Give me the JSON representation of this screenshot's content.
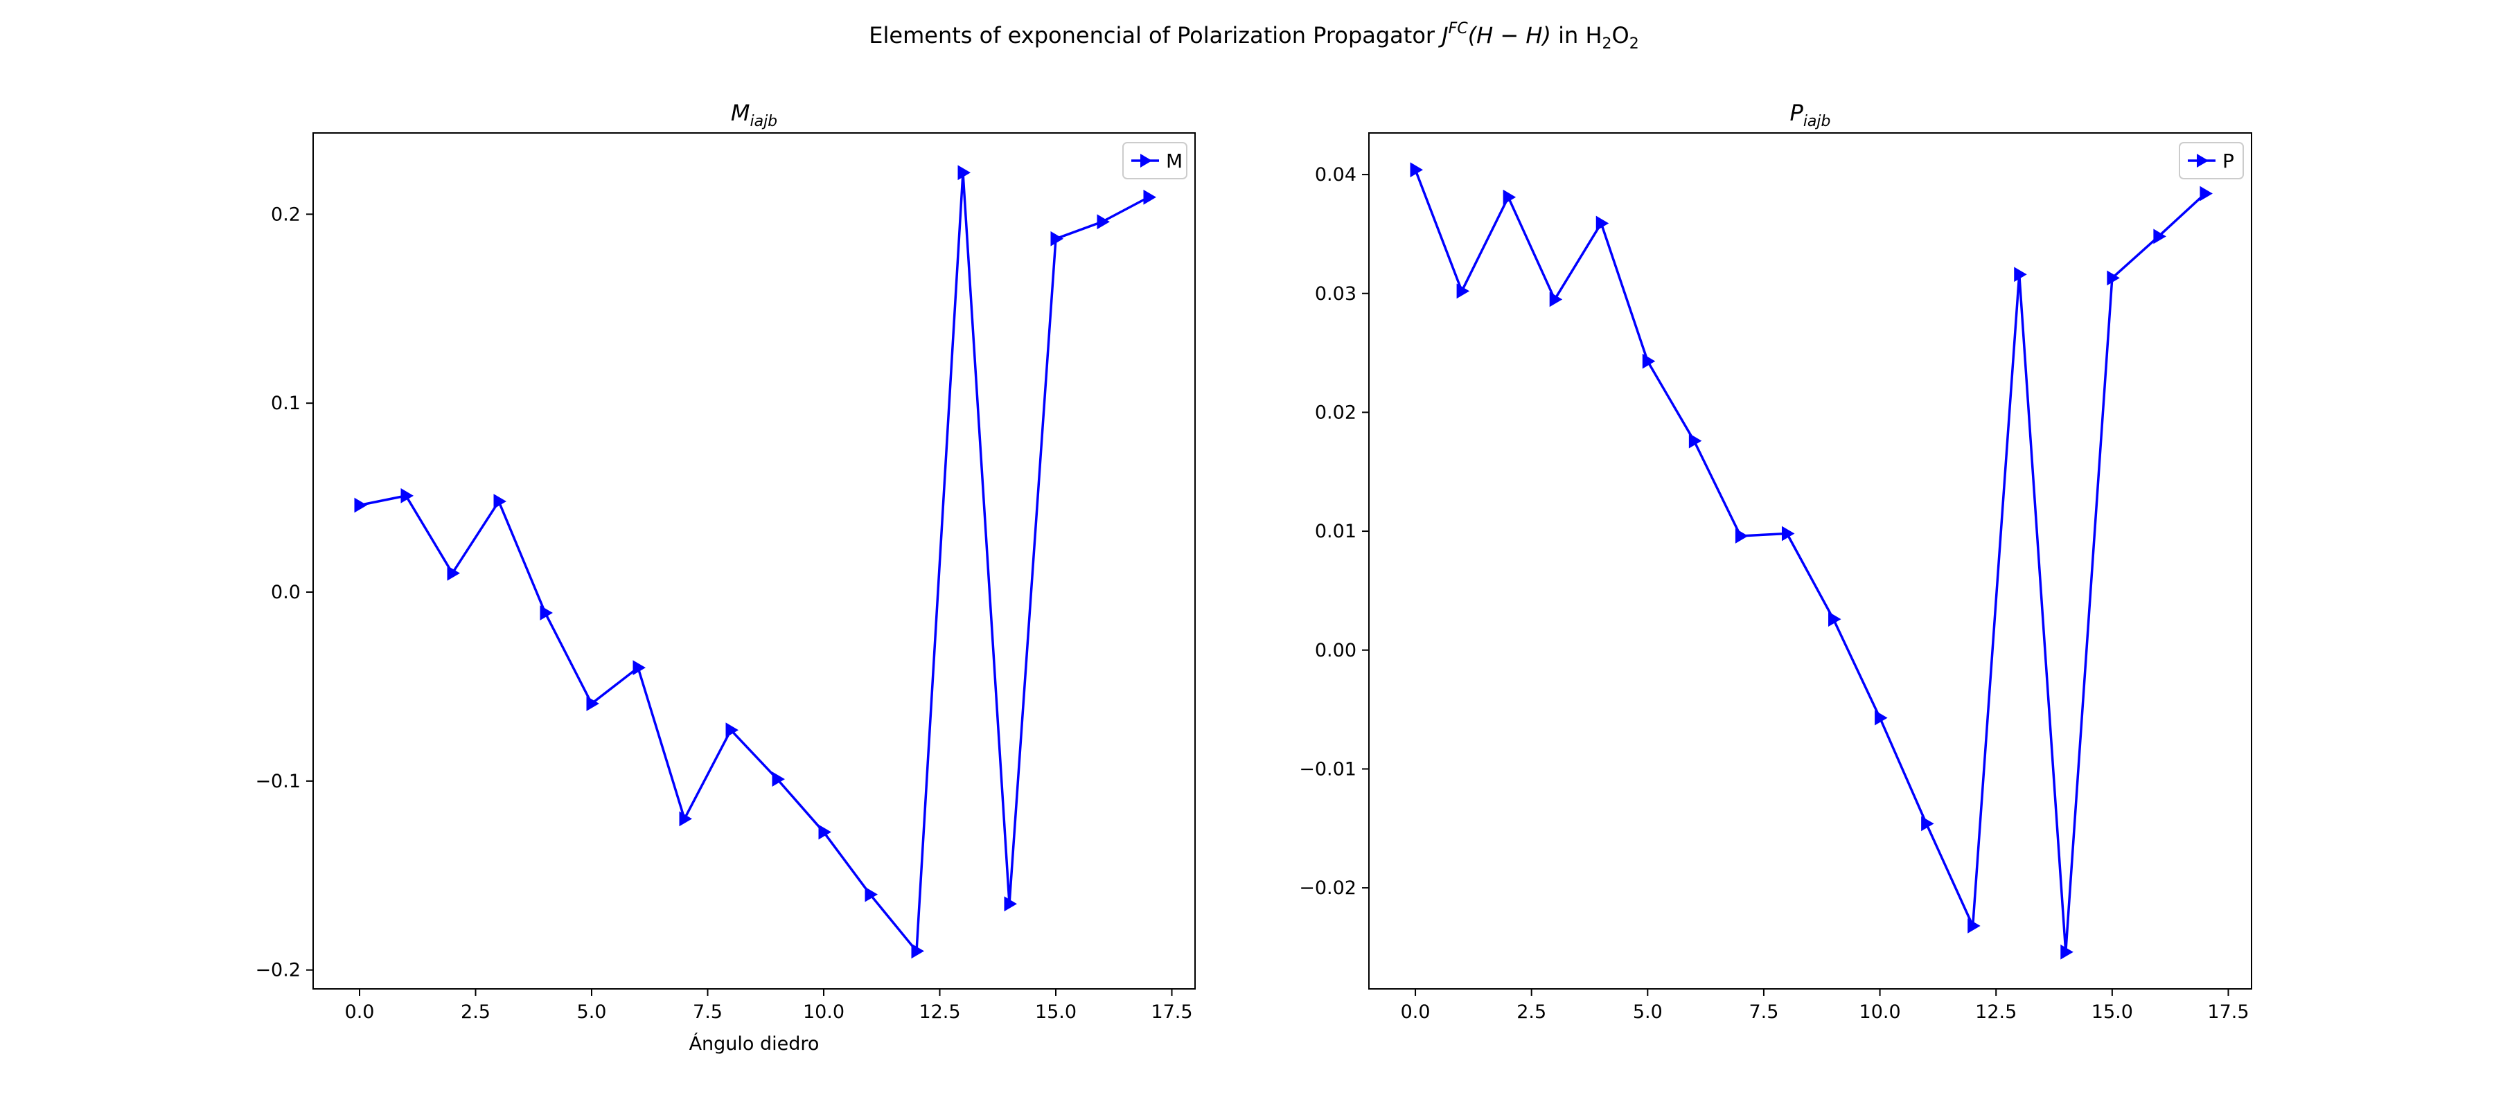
{
  "figure": {
    "title_parts": {
      "prefix": "Elements of exponencial of Polarization Propagator ",
      "j": "J",
      "j_sup": "FC",
      "paren": "(H − H)",
      "middle": " in H",
      "sub1": "2",
      "o": "O",
      "sub2": "2"
    }
  },
  "chart_data": [
    {
      "type": "line",
      "title_main": "M",
      "title_sub": "iajb",
      "xlabel": "Ángulo diedro",
      "ylabel": "",
      "xlim": [
        -1,
        18
      ],
      "ylim": [
        -0.21,
        0.243
      ],
      "xticks": [
        0.0,
        2.5,
        5.0,
        7.5,
        10.0,
        12.5,
        15.0,
        17.5
      ],
      "xtick_labels": [
        "0.0",
        "2.5",
        "5.0",
        "7.5",
        "10.0",
        "12.5",
        "15.0",
        "17.5"
      ],
      "yticks": [
        -0.2,
        -0.1,
        0.0,
        0.1,
        0.2
      ],
      "ytick_labels": [
        "−0.2",
        "−0.1",
        "0.0",
        "0.1",
        "0.2"
      ],
      "color": "#0000ff",
      "marker": "triangle-right",
      "legend": "top-right",
      "series": [
        {
          "name": "M",
          "x": [
            0,
            1,
            2,
            3,
            4,
            5,
            6,
            7,
            8,
            9,
            10,
            11,
            12,
            13,
            14,
            15,
            16,
            17
          ],
          "values": [
            0.046,
            0.051,
            0.01,
            0.048,
            -0.011,
            -0.059,
            -0.04,
            -0.12,
            -0.073,
            -0.099,
            -0.127,
            -0.16,
            -0.19,
            0.222,
            -0.165,
            0.187,
            0.196,
            0.209
          ]
        }
      ]
    },
    {
      "type": "line",
      "title_main": "P",
      "title_sub": "iajb",
      "xlabel": "",
      "ylabel": "",
      "xlim": [
        -1,
        18
      ],
      "ylim": [
        -0.0285,
        0.0435
      ],
      "xticks": [
        0.0,
        2.5,
        5.0,
        7.5,
        10.0,
        12.5,
        15.0,
        17.5
      ],
      "xtick_labels": [
        "0.0",
        "2.5",
        "5.0",
        "7.5",
        "10.0",
        "12.5",
        "15.0",
        "17.5"
      ],
      "yticks": [
        -0.02,
        -0.01,
        0.0,
        0.01,
        0.02,
        0.03,
        0.04
      ],
      "ytick_labels": [
        "−0.02",
        "−0.01",
        "0.00",
        "0.01",
        "0.02",
        "0.03",
        "0.04"
      ],
      "color": "#0000ff",
      "marker": "triangle-right",
      "legend": "top-right",
      "series": [
        {
          "name": "P",
          "x": [
            0,
            1,
            2,
            3,
            4,
            5,
            6,
            7,
            8,
            9,
            10,
            11,
            12,
            13,
            14,
            15,
            16,
            17
          ],
          "values": [
            0.0404,
            0.0302,
            0.0381,
            0.0295,
            0.0359,
            0.0243,
            0.0176,
            0.0096,
            0.0098,
            0.0026,
            -0.0057,
            -0.0146,
            -0.0232,
            0.0316,
            -0.0254,
            0.0313,
            0.0348,
            0.0384
          ]
        }
      ]
    }
  ]
}
